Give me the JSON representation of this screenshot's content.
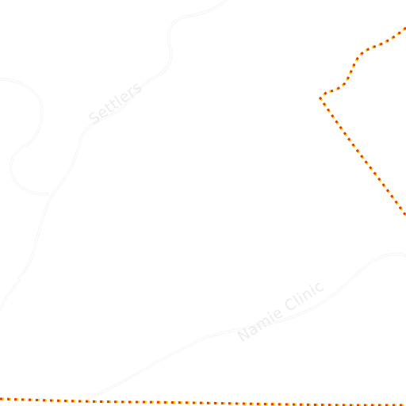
{
  "map": {
    "background_color": "#ffffff",
    "road_color": "#f0f0f0",
    "boundary_colors": {
      "outer": "#ffd200",
      "inner": "#e53a00"
    },
    "labels": {
      "settlers": "Settlers",
      "namie_clinic": "Namie Clinic"
    }
  }
}
